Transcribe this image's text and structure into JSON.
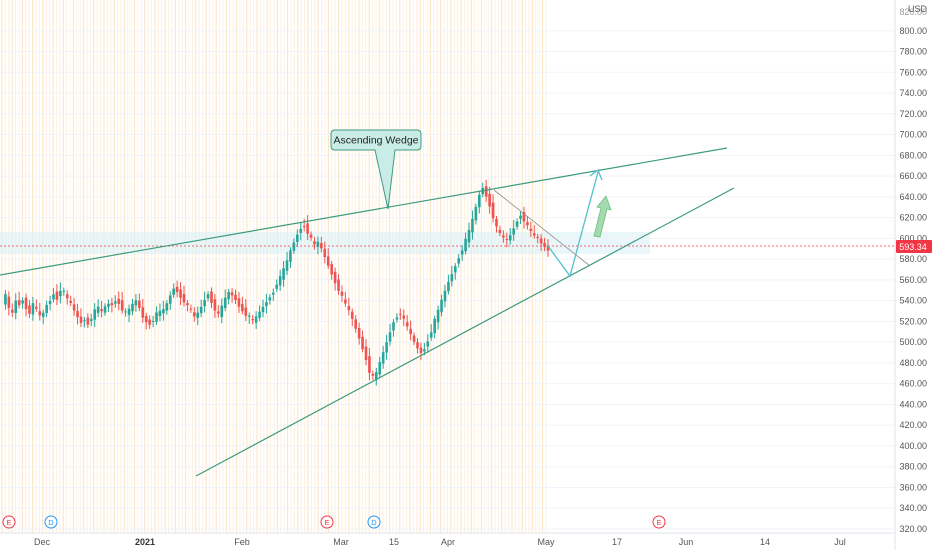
{
  "chart_data": {
    "type": "candlestick",
    "currency": "USD",
    "last_price": "593.34",
    "ylim": [
      315,
      835
    ],
    "y_ticks": [
      320,
      340,
      360,
      380,
      400,
      420,
      440,
      460,
      480,
      500,
      520,
      540,
      560,
      580,
      600,
      620,
      640,
      660,
      680,
      700,
      720,
      740,
      760,
      780,
      800
    ],
    "y_tick_labels": [
      "320.00",
      "340.00",
      "360.00",
      "380.00",
      "400.00",
      "420.00",
      "440.00",
      "460.00",
      "480.00",
      "500.00",
      "520.00",
      "540.00",
      "560.00",
      "580.00",
      "600.00",
      "620.00",
      "640.00",
      "660.00",
      "680.00",
      "700.00",
      "720.00",
      "740.00",
      "760.00",
      "780.00",
      "800.00"
    ],
    "top_tick_label": "820.00",
    "x_ticks": [
      {
        "label": "Dec",
        "bold": false
      },
      {
        "label": "2021",
        "bold": true
      },
      {
        "label": "Feb",
        "bold": false
      },
      {
        "label": "Mar",
        "bold": false
      },
      {
        "label": "15",
        "bold": false
      },
      {
        "label": "Apr",
        "bold": false
      },
      {
        "label": "May",
        "bold": false
      },
      {
        "label": "17",
        "bold": false
      },
      {
        "label": "Jun",
        "bold": false
      },
      {
        "label": "14",
        "bold": false
      },
      {
        "label": "Jul",
        "bold": false
      }
    ],
    "annotation": "Ascending Wedge",
    "event_markers": [
      "E",
      "D",
      "E",
      "D",
      "E"
    ],
    "price_path": [
      538,
      545,
      532,
      528,
      540,
      536,
      541,
      533,
      529,
      536,
      531,
      525,
      528,
      536,
      540,
      547,
      542,
      551,
      548,
      541,
      537,
      530,
      524,
      519,
      522,
      518,
      524,
      530,
      533,
      529,
      534,
      537,
      536,
      540,
      538,
      532,
      528,
      531,
      536,
      540,
      533,
      524,
      520,
      518,
      522,
      527,
      529,
      531,
      537,
      545,
      552,
      549,
      544,
      540,
      534,
      530,
      524,
      528,
      534,
      541,
      547,
      539,
      532,
      526,
      534,
      542,
      548,
      545,
      541,
      535,
      531,
      527,
      524,
      520,
      524,
      529,
      534,
      539,
      544,
      549,
      557,
      562,
      570,
      578,
      588,
      596,
      604,
      610,
      612,
      606,
      599,
      593,
      596,
      590,
      582,
      574,
      566,
      558,
      551,
      543,
      536,
      530,
      522,
      513,
      504,
      494,
      484,
      472,
      466,
      470,
      480,
      490,
      500,
      510,
      520,
      525,
      528,
      521,
      514,
      507,
      500,
      494,
      490,
      494,
      502,
      511,
      521,
      530,
      540,
      549,
      558,
      566,
      574,
      582,
      590,
      598,
      607,
      618,
      630,
      642,
      649,
      641,
      632,
      621,
      610,
      604,
      600,
      598,
      603,
      610,
      617,
      623,
      618,
      611,
      606,
      602,
      600,
      595,
      592,
      589
    ]
  }
}
